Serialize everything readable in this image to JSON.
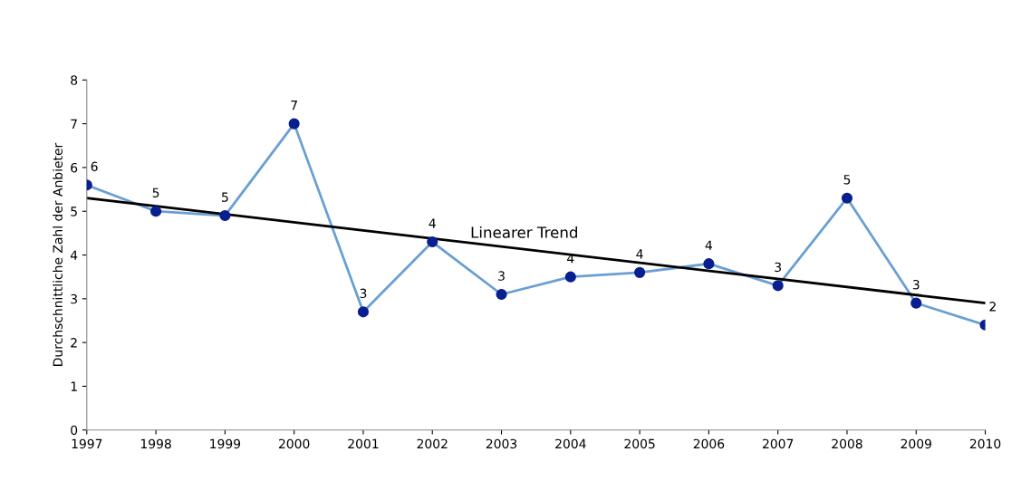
{
  "chart_data": {
    "type": "line",
    "ylabel": "Durchschnittliche Zahl der Anbieter",
    "x": [
      1997,
      1998,
      1999,
      2000,
      2001,
      2002,
      2003,
      2004,
      2005,
      2006,
      2007,
      2008,
      2009,
      2010
    ],
    "xlim": [
      1997,
      2010
    ],
    "xticks": [
      1997,
      1998,
      1999,
      2000,
      2001,
      2002,
      2003,
      2004,
      2005,
      2006,
      2007,
      2008,
      2009,
      2010
    ],
    "ylim": [
      0,
      8
    ],
    "yticks": [
      0,
      1,
      2,
      3,
      4,
      5,
      6,
      7,
      8
    ],
    "grid": false,
    "legend": false,
    "series": [
      {
        "color": "#6a9fd4",
        "colors": [
          "#0a1f8f",
          "#0a1f8f",
          "#0a1f8f",
          "#0a1f8f",
          "#0a1f8f",
          "#0a1f8f",
          "#0a1f8f",
          "#0a1f8f",
          "#0a1f8f",
          "#0a1f8f",
          "#0a1f8f",
          "#0a1f8f",
          "#0a1f8f",
          "#0a1f8f"
        ],
        "marker": "circle",
        "values": [
          5.6,
          5.0,
          4.9,
          7.0,
          2.7,
          4.3,
          3.1,
          3.5,
          3.6,
          3.8,
          3.3,
          5.3,
          2.9,
          2.4
        ],
        "value_labels": [
          "6",
          "5",
          "5",
          "7",
          "3",
          "4",
          "3",
          "4",
          "4",
          "4",
          "3",
          "5",
          "3",
          "2"
        ]
      },
      {
        "type": "line",
        "color": "#000000",
        "marker": "none",
        "x": [
          1997,
          2010
        ],
        "values": [
          5.3,
          2.9
        ]
      }
    ],
    "annotations": [
      "Linearer Trend"
    ]
  }
}
